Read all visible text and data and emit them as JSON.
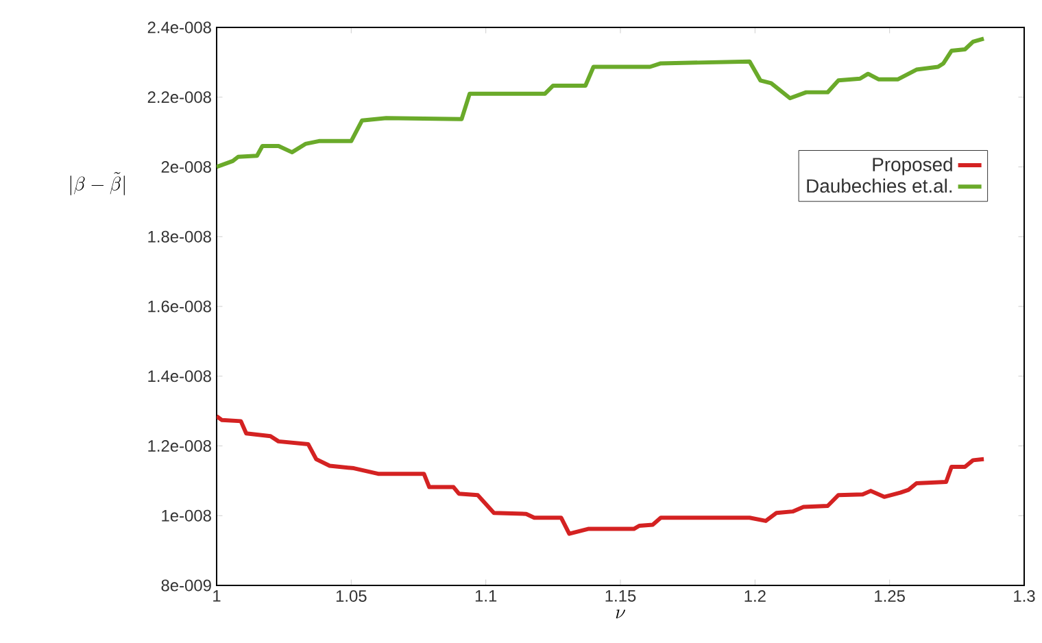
{
  "chart_data": {
    "type": "line",
    "xlabel": "\\nu",
    "ylabel": "|\\beta - \\tilde{\\beta}|",
    "xlim": [
      1,
      1.3
    ],
    "xticks": [
      1,
      1.05,
      1.1,
      1.15,
      1.2,
      1.25,
      1.3
    ],
    "ylim": [
      8e-09,
      2.4e-08
    ],
    "yticks": [
      {
        "value": 8e-09,
        "label": "8e-009"
      },
      {
        "value": 1e-08,
        "label": "1e-008"
      },
      {
        "value": 1.2e-08,
        "label": "1.2e-008"
      },
      {
        "value": 1.4e-08,
        "label": "1.4e-008"
      },
      {
        "value": 1.6e-08,
        "label": "1.6e-008"
      },
      {
        "value": 1.8e-08,
        "label": "1.8e-008"
      },
      {
        "value": 2e-08,
        "label": "2e-008"
      },
      {
        "value": 2.2e-08,
        "label": "2.2e-008"
      },
      {
        "value": 2.4e-08,
        "label": "2.4e-008"
      }
    ],
    "legend": "right",
    "marker": "none",
    "line_style": "solid",
    "grid": false,
    "series": [
      {
        "name": "Proposed",
        "color": "#d42222",
        "x": [
          1.0,
          1.002,
          1.009,
          1.011,
          1.02,
          1.023,
          1.034,
          1.037,
          1.042,
          1.051,
          1.06,
          1.077,
          1.079,
          1.088,
          1.09,
          1.097,
          1.103,
          1.115,
          1.118,
          1.128,
          1.131,
          1.138,
          1.155,
          1.157,
          1.162,
          1.165,
          1.198,
          1.204,
          1.208,
          1.214,
          1.218,
          1.227,
          1.231,
          1.24,
          1.243,
          1.248,
          1.254,
          1.257,
          1.26,
          1.271,
          1.273,
          1.278,
          1.281,
          1.285
        ],
        "values": [
          1.285e-08,
          1.274e-08,
          1.271e-08,
          1.236e-08,
          1.228e-08,
          1.213e-08,
          1.205e-08,
          1.162e-08,
          1.143e-08,
          1.136e-08,
          1.12e-08,
          1.12e-08,
          1.082e-08,
          1.082e-08,
          1.063e-08,
          1.059e-08,
          1.008e-08,
          1.005e-08,
          9.94e-09,
          9.94e-09,
          9.48e-09,
          9.62e-09,
          9.62e-09,
          9.71e-09,
          9.74e-09,
          9.94e-09,
          9.94e-09,
          9.85e-09,
          1.008e-08,
          1.012e-08,
          1.025e-08,
          1.028e-08,
          1.059e-08,
          1.061e-08,
          1.071e-08,
          1.054e-08,
          1.066e-08,
          1.074e-08,
          1.093e-08,
          1.097e-08,
          1.14e-08,
          1.14e-08,
          1.159e-08,
          1.162e-08
        ]
      },
      {
        "name": "Daubechies et.al.",
        "color": "#6aaa2a",
        "x": [
          1.0,
          1.006,
          1.008,
          1.015,
          1.017,
          1.023,
          1.028,
          1.033,
          1.038,
          1.05,
          1.054,
          1.063,
          1.091,
          1.094,
          1.122,
          1.125,
          1.137,
          1.14,
          1.161,
          1.165,
          1.198,
          1.202,
          1.206,
          1.213,
          1.219,
          1.227,
          1.231,
          1.239,
          1.242,
          1.246,
          1.253,
          1.26,
          1.268,
          1.27,
          1.273,
          1.278,
          1.281,
          1.285
        ],
        "values": [
          2e-08,
          2.017e-08,
          2.029e-08,
          2.032e-08,
          2.06e-08,
          2.06e-08,
          2.042e-08,
          2.066e-08,
          2.074e-08,
          2.074e-08,
          2.133e-08,
          2.14e-08,
          2.137e-08,
          2.21e-08,
          2.21e-08,
          2.233e-08,
          2.233e-08,
          2.287e-08,
          2.287e-08,
          2.297e-08,
          2.302e-08,
          2.248e-08,
          2.24e-08,
          2.197e-08,
          2.214e-08,
          2.214e-08,
          2.248e-08,
          2.253e-08,
          2.267e-08,
          2.251e-08,
          2.251e-08,
          2.279e-08,
          2.287e-08,
          2.297e-08,
          2.333e-08,
          2.337e-08,
          2.359e-08,
          2.368e-08
        ]
      }
    ]
  }
}
